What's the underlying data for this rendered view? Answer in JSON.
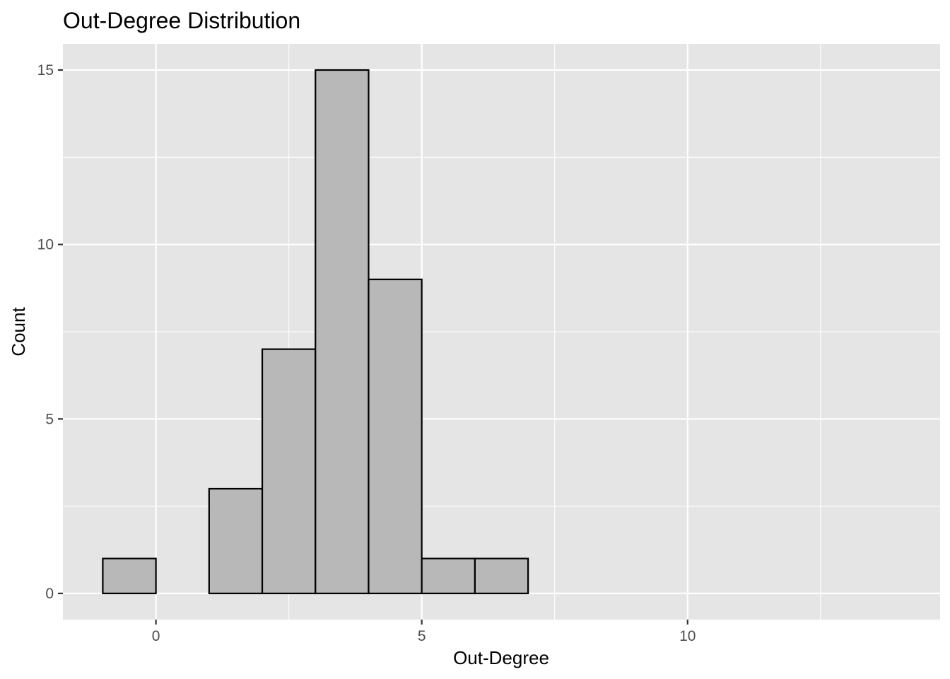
{
  "chart_data": {
    "type": "bar",
    "title": "Out-Degree Distribution",
    "xlabel": "Out-Degree",
    "ylabel": "Count",
    "bin_width": 1,
    "bins": [
      {
        "start": -1,
        "end": 0,
        "count": 1
      },
      {
        "start": 0,
        "end": 1,
        "count": 0
      },
      {
        "start": 1,
        "end": 2,
        "count": 3
      },
      {
        "start": 2,
        "end": 3,
        "count": 7
      },
      {
        "start": 3,
        "end": 4,
        "count": 15
      },
      {
        "start": 4,
        "end": 5,
        "count": 9
      },
      {
        "start": 5,
        "end": 6,
        "count": 1
      },
      {
        "start": 6,
        "end": 7,
        "count": 1
      },
      {
        "start": 7,
        "end": 8,
        "count": 0
      },
      {
        "start": 8,
        "end": 9,
        "count": 0
      },
      {
        "start": 9,
        "end": 10,
        "count": 0
      },
      {
        "start": 10,
        "end": 11,
        "count": 0
      },
      {
        "start": 11,
        "end": 12,
        "count": 0
      },
      {
        "start": 12,
        "end": 13,
        "count": 0
      },
      {
        "start": 13,
        "end": 14,
        "count": 0
      }
    ],
    "xlim": [
      -1.75,
      14.75
    ],
    "ylim": [
      -0.75,
      15.75
    ],
    "x_ticks": [
      0,
      5,
      10
    ],
    "y_ticks": [
      0,
      5,
      10,
      15
    ],
    "grid": true,
    "legend": "none",
    "colors": {
      "panel_background": "#e5e5e5",
      "grid_line": "#ffffff",
      "bar_fill": "#b8b8b8",
      "bar_outline": "#000000",
      "tick_label": "#4d4d4d"
    }
  }
}
